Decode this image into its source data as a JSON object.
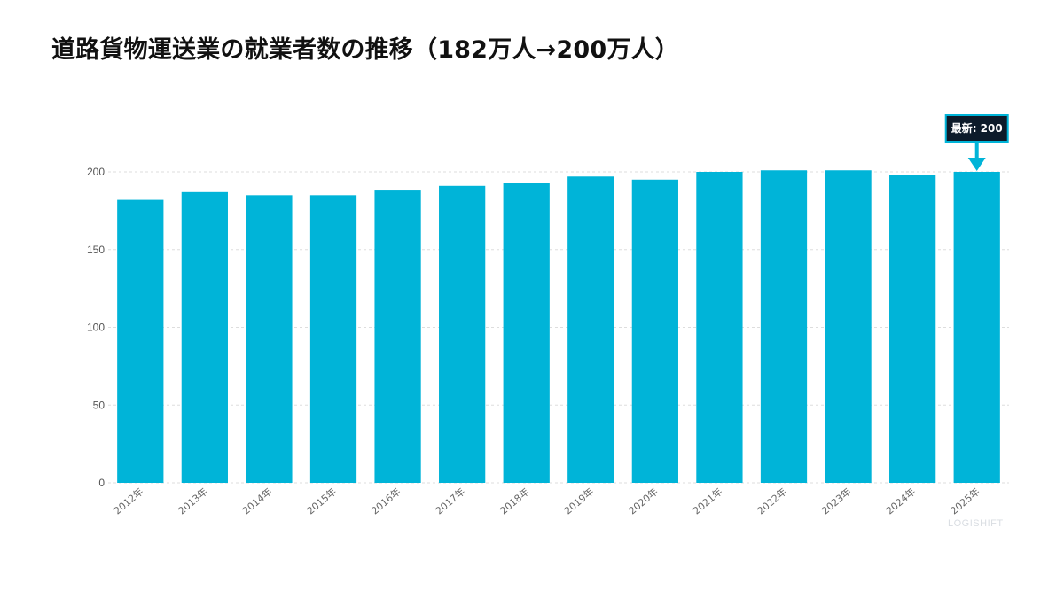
{
  "page": {
    "title": "道路貨物運送業の就業者数の推移（182万人→200万人）",
    "watermark": "LOGISHIFT"
  },
  "chart_data": {
    "type": "bar",
    "title": "道路貨物運送業の就業者数の推移（182万人→200万人）",
    "xlabel": "",
    "ylabel": "",
    "categories": [
      "2012年",
      "2013年",
      "2014年",
      "2015年",
      "2016年",
      "2017年",
      "2018年",
      "2019年",
      "2020年",
      "2021年",
      "2022年",
      "2023年",
      "2024年",
      "2025年"
    ],
    "values": [
      182,
      187,
      185,
      185,
      188,
      191,
      193,
      197,
      195,
      200,
      201,
      201,
      198,
      200
    ],
    "ylim": [
      0,
      200
    ],
    "yticks": [
      0,
      50,
      100,
      150,
      200
    ],
    "grid": true,
    "bar_color": "#00b4d8",
    "annotation": {
      "text": "最新: 200",
      "category": "2025年",
      "box_color": "#0d1b2a",
      "border_color": "#00b4d8"
    }
  }
}
